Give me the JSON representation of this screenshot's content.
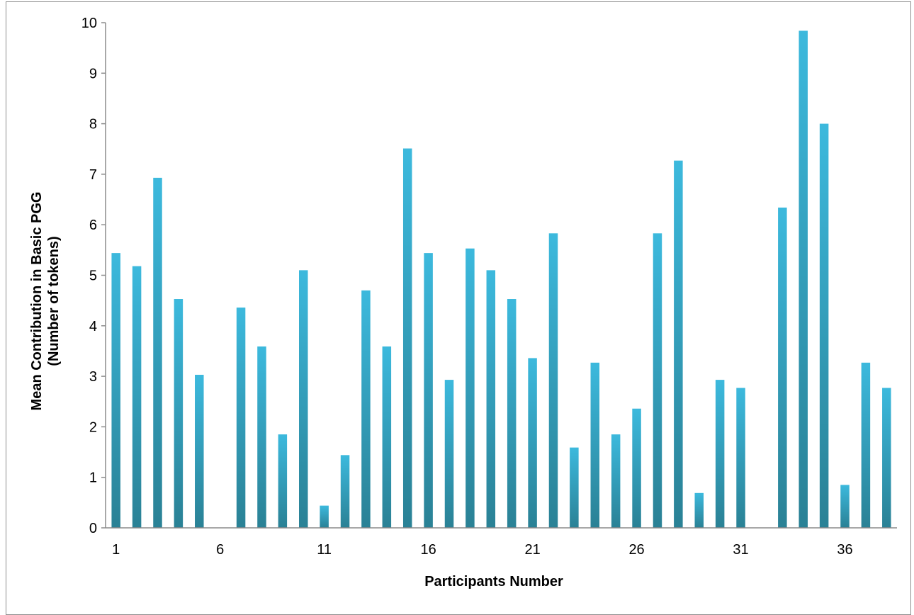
{
  "chart_data": {
    "type": "bar",
    "title": "",
    "xlabel": "Participants Number",
    "ylabel_lines": [
      "Mean Contribution in Basic PGG",
      "(Number of tokens)"
    ],
    "ylim": [
      0,
      10
    ],
    "yticks": [
      0,
      1,
      2,
      3,
      4,
      5,
      6,
      7,
      8,
      9,
      10
    ],
    "xtick_labels": [
      "1",
      "6",
      "11",
      "16",
      "21",
      "26",
      "31",
      "36"
    ],
    "categories": [
      1,
      2,
      3,
      4,
      5,
      6,
      7,
      8,
      9,
      10,
      11,
      12,
      13,
      14,
      15,
      16,
      17,
      18,
      19,
      20,
      21,
      22,
      23,
      24,
      25,
      26,
      27,
      28,
      29,
      30,
      31,
      32,
      33,
      34,
      35,
      36,
      37,
      38
    ],
    "values": [
      5.44,
      5.18,
      6.93,
      4.53,
      3.03,
      0,
      4.36,
      3.59,
      1.85,
      5.1,
      0.44,
      1.44,
      4.7,
      3.59,
      7.51,
      5.44,
      2.93,
      5.53,
      5.1,
      4.53,
      3.36,
      5.83,
      1.59,
      3.27,
      1.85,
      2.36,
      5.83,
      7.27,
      0.69,
      2.93,
      2.77,
      0,
      6.34,
      9.84,
      8.0,
      0.85,
      3.27,
      2.77
    ],
    "grid": false,
    "legend": "none",
    "bar_colors": {
      "top": "#3cb9dd",
      "bottom": "#2a8195"
    },
    "axis_color": "#8c8c8c"
  }
}
